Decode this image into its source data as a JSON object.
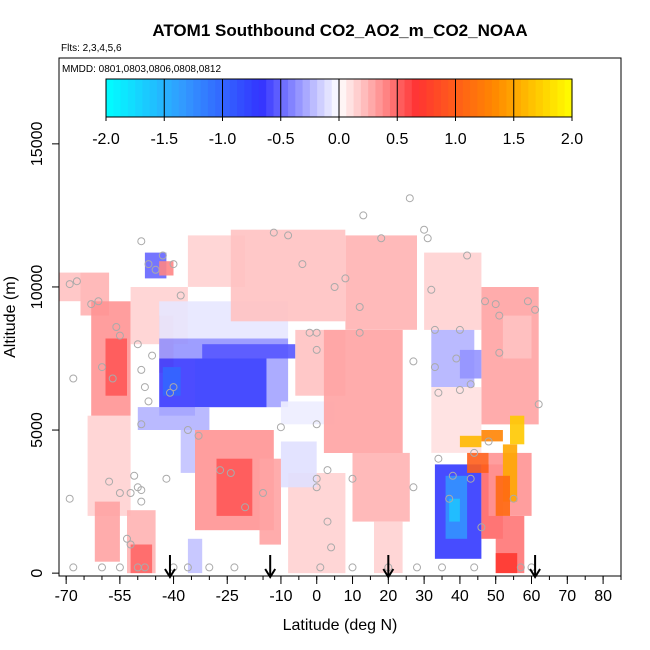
{
  "chart_data": {
    "type": "heatmap",
    "title": "ATOM1 Southbound CO2_AO2_m_CO2_NOAA",
    "subtitle_flights": "Flts: 2,3,4,5,6",
    "subtitle_dates": "MMDD: 0801,0803,0806,0808,0812",
    "xlabel": "Latitude (deg N)",
    "ylabel": "Altitude (m)",
    "xlim": [
      -72,
      85
    ],
    "ylim": [
      -100,
      18000
    ],
    "x_ticks": [
      -70,
      -55,
      -40,
      -25,
      -10,
      0,
      10,
      20,
      30,
      40,
      50,
      60,
      70,
      80
    ],
    "x_tick_labels": [
      "-70",
      "-55",
      "-40",
      "-25",
      "-10",
      "0",
      "10",
      "20",
      "30",
      "40",
      "50",
      "60",
      "70",
      "80"
    ],
    "y_ticks": [
      0,
      5000,
      10000,
      15000
    ],
    "y_tick_labels": [
      "0",
      "5000",
      "10000",
      "15000"
    ],
    "colorbar": {
      "min": -2.0,
      "max": 2.0,
      "ticks": [
        -2.0,
        -1.5,
        -1.0,
        -0.5,
        0.0,
        0.5,
        1.0,
        1.5,
        2.0
      ],
      "tick_labels": [
        "-2.0",
        "-1.5",
        "-1.0",
        "-0.5",
        "0.0",
        "0.5",
        "1.0",
        "1.5",
        "2.0"
      ],
      "colors": [
        "#00ffff",
        "#3399ff",
        "#3333ff",
        "#ffffff",
        "#ff3333",
        "#ff8800",
        "#ffff00"
      ]
    },
    "arrows_latitude": [
      -41,
      -13,
      20,
      61
    ],
    "patches": [
      {
        "lat": [
          -72,
          -66
        ],
        "alt": [
          9500,
          10500
        ],
        "value": 0.2
      },
      {
        "lat": [
          -66,
          -58
        ],
        "alt": [
          9000,
          10500
        ],
        "value": 0.25
      },
      {
        "lat": [
          -63,
          -52
        ],
        "alt": [
          5500,
          9500
        ],
        "value": 0.35
      },
      {
        "lat": [
          -59,
          -53
        ],
        "alt": [
          6200,
          8200
        ],
        "value": 0.55
      },
      {
        "lat": [
          -64,
          -52
        ],
        "alt": [
          2000,
          5500
        ],
        "value": 0.15
      },
      {
        "lat": [
          -62,
          -55
        ],
        "alt": [
          400,
          2500
        ],
        "value": 0.3
      },
      {
        "lat": [
          -53,
          -45
        ],
        "alt": [
          0,
          2200
        ],
        "value": 0.25
      },
      {
        "lat": [
          -52,
          -46
        ],
        "alt": [
          0,
          1000
        ],
        "value": 0.5
      },
      {
        "lat": [
          -48,
          -42
        ],
        "alt": [
          10300,
          11200
        ],
        "value": -0.5
      },
      {
        "lat": [
          -44,
          -40
        ],
        "alt": [
          10400,
          10900
        ],
        "value": 0.4
      },
      {
        "lat": [
          -52,
          -36
        ],
        "alt": [
          8000,
          10000
        ],
        "value": 0.15
      },
      {
        "lat": [
          -44,
          -40
        ],
        "alt": [
          7000,
          9000
        ],
        "value": 0.25
      },
      {
        "lat": [
          -44,
          -8
        ],
        "alt": [
          8200,
          9500
        ],
        "value": -0.08
      },
      {
        "lat": [
          -44,
          -8
        ],
        "alt": [
          7500,
          8200
        ],
        "value": -0.35
      },
      {
        "lat": [
          -32,
          -6
        ],
        "alt": [
          7500,
          8000
        ],
        "value": -0.55
      },
      {
        "lat": [
          -44,
          -34
        ],
        "alt": [
          5500,
          7500
        ],
        "value": -0.65
      },
      {
        "lat": [
          -43,
          -38
        ],
        "alt": [
          6200,
          7200
        ],
        "value": -1.0
      },
      {
        "lat": [
          -34,
          -14
        ],
        "alt": [
          5800,
          7500
        ],
        "value": -0.7
      },
      {
        "lat": [
          -14,
          -8
        ],
        "alt": [
          5800,
          7500
        ],
        "value": -0.3
      },
      {
        "lat": [
          -50,
          -30
        ],
        "alt": [
          5000,
          5800
        ],
        "value": -0.25
      },
      {
        "lat": [
          -38,
          -34
        ],
        "alt": [
          3500,
          5000
        ],
        "value": -0.2
      },
      {
        "lat": [
          -10,
          5
        ],
        "alt": [
          5200,
          6000
        ],
        "value": -0.06
      },
      {
        "lat": [
          -36,
          -20
        ],
        "alt": [
          10000,
          11800
        ],
        "value": 0.15
      },
      {
        "lat": [
          -24,
          8
        ],
        "alt": [
          8800,
          12000
        ],
        "value": 0.2
      },
      {
        "lat": [
          -6,
          8
        ],
        "alt": [
          6200,
          8500
        ],
        "value": 0.2
      },
      {
        "lat": [
          8,
          28
        ],
        "alt": [
          8500,
          11800
        ],
        "value": 0.25
      },
      {
        "lat": [
          2,
          24
        ],
        "alt": [
          4200,
          8500
        ],
        "value": 0.3
      },
      {
        "lat": [
          10,
          26
        ],
        "alt": [
          1800,
          4200
        ],
        "value": 0.25
      },
      {
        "lat": [
          16,
          24
        ],
        "alt": [
          0,
          1800
        ],
        "value": 0.15
      },
      {
        "lat": [
          -34,
          -12
        ],
        "alt": [
          1500,
          5000
        ],
        "value": 0.35
      },
      {
        "lat": [
          -28,
          -18
        ],
        "alt": [
          2000,
          4000
        ],
        "value": 0.55
      },
      {
        "lat": [
          -16,
          -10
        ],
        "alt": [
          1000,
          4000
        ],
        "value": 0.3
      },
      {
        "lat": [
          -36,
          -32
        ],
        "alt": [
          0,
          1200
        ],
        "value": -0.2
      },
      {
        "lat": [
          -8,
          8
        ],
        "alt": [
          0,
          3500
        ],
        "value": 0.15
      },
      {
        "lat": [
          -10,
          0
        ],
        "alt": [
          3000,
          4600
        ],
        "value": -0.1
      },
      {
        "lat": [
          30,
          46
        ],
        "alt": [
          8500,
          11200
        ],
        "value": 0.15
      },
      {
        "lat": [
          46,
          62
        ],
        "alt": [
          5200,
          10000
        ],
        "value": 0.3
      },
      {
        "lat": [
          52,
          60
        ],
        "alt": [
          7500,
          9000
        ],
        "value": 0.2
      },
      {
        "lat": [
          32,
          44
        ],
        "alt": [
          6500,
          8500
        ],
        "value": -0.25
      },
      {
        "lat": [
          32,
          46
        ],
        "alt": [
          4200,
          6500
        ],
        "value": 0.1
      },
      {
        "lat": [
          40,
          46
        ],
        "alt": [
          6800,
          7800
        ],
        "value": -0.35
      },
      {
        "lat": [
          33,
          46
        ],
        "alt": [
          500,
          3800
        ],
        "value": -0.7
      },
      {
        "lat": [
          36,
          42
        ],
        "alt": [
          1200,
          3400
        ],
        "value": -1.3
      },
      {
        "lat": [
          37,
          40
        ],
        "alt": [
          1800,
          2600
        ],
        "value": -1.6
      },
      {
        "lat": [
          46,
          52
        ],
        "alt": [
          1200,
          3800
        ],
        "value": 0.5
      },
      {
        "lat": [
          50,
          58
        ],
        "alt": [
          0,
          2000
        ],
        "value": 0.45
      },
      {
        "lat": [
          50,
          56
        ],
        "alt": [
          0,
          700
        ],
        "value": 0.7
      },
      {
        "lat": [
          48,
          60
        ],
        "alt": [
          2000,
          4200
        ],
        "value": 0.35
      },
      {
        "lat": [
          40,
          46
        ],
        "alt": [
          4400,
          4800
        ],
        "value": 1.6
      },
      {
        "lat": [
          46,
          52
        ],
        "alt": [
          4600,
          5000
        ],
        "value": 1.3
      },
      {
        "lat": [
          54,
          58
        ],
        "alt": [
          4500,
          5500
        ],
        "value": 1.7
      },
      {
        "lat": [
          52,
          56
        ],
        "alt": [
          2500,
          4500
        ],
        "value": 1.5
      },
      {
        "lat": [
          50,
          54
        ],
        "alt": [
          2000,
          3400
        ],
        "value": 1.1
      },
      {
        "lat": [
          42,
          48
        ],
        "alt": [
          3500,
          4200
        ],
        "value": 1.0
      }
    ],
    "points": [
      [
        -69,
        10100
      ],
      [
        -67,
        10200
      ],
      [
        -68,
        6800
      ],
      [
        -69,
        2600
      ],
      [
        -68,
        200
      ],
      [
        -63,
        9400
      ],
      [
        -61,
        9500
      ],
      [
        -56,
        8600
      ],
      [
        -55,
        8300
      ],
      [
        -60,
        7200
      ],
      [
        -57,
        6800
      ],
      [
        -58,
        3200
      ],
      [
        -55,
        2800
      ],
      [
        -52,
        2800
      ],
      [
        -50,
        3000
      ],
      [
        -51,
        3400
      ],
      [
        -49,
        2900
      ],
      [
        -49,
        2500
      ],
      [
        -49,
        5200
      ],
      [
        -53,
        1200
      ],
      [
        -52,
        1000
      ],
      [
        -55,
        200
      ],
      [
        -60,
        200
      ],
      [
        -50,
        200
      ],
      [
        -48,
        200
      ],
      [
        -50,
        8000
      ],
      [
        -49,
        7100
      ],
      [
        -48,
        6500
      ],
      [
        -47,
        6000
      ],
      [
        -46,
        7600
      ],
      [
        -49,
        11600
      ],
      [
        -47,
        10800
      ],
      [
        -45,
        10600
      ],
      [
        -43,
        11100
      ],
      [
        -40,
        10800
      ],
      [
        -38,
        9700
      ],
      [
        -40,
        6500
      ],
      [
        -41,
        6300
      ],
      [
        -36,
        5000
      ],
      [
        -33,
        4800
      ],
      [
        -42,
        3300
      ],
      [
        -40,
        200
      ],
      [
        -36,
        200
      ],
      [
        -30,
        200
      ],
      [
        -27,
        3600
      ],
      [
        -24,
        3500
      ],
      [
        -23,
        200
      ],
      [
        -20,
        2300
      ],
      [
        -15,
        2800
      ],
      [
        -12,
        11900
      ],
      [
        -10,
        5100
      ],
      [
        -8,
        11800
      ],
      [
        -4,
        10800
      ],
      [
        -2,
        8400
      ],
      [
        0,
        8400
      ],
      [
        0,
        7800
      ],
      [
        0,
        5200
      ],
      [
        0,
        3300
      ],
      [
        0,
        3000
      ],
      [
        1,
        200
      ],
      [
        3,
        3600
      ],
      [
        3,
        1800
      ],
      [
        4,
        900
      ],
      [
        5,
        10000
      ],
      [
        8,
        10300
      ],
      [
        10,
        3300
      ],
      [
        10,
        200
      ],
      [
        12,
        8400
      ],
      [
        12,
        9300
      ],
      [
        13,
        12500
      ],
      [
        18,
        11700
      ],
      [
        20,
        200
      ],
      [
        26,
        13100
      ],
      [
        27,
        7400
      ],
      [
        27,
        3000
      ],
      [
        28,
        200
      ],
      [
        30,
        12000
      ],
      [
        31,
        11700
      ],
      [
        32,
        9900
      ],
      [
        33,
        8500
      ],
      [
        33,
        7200
      ],
      [
        34,
        6300
      ],
      [
        34,
        4000
      ],
      [
        35,
        200
      ],
      [
        37,
        2600
      ],
      [
        38,
        3400
      ],
      [
        39,
        7500
      ],
      [
        40,
        8500
      ],
      [
        40,
        6400
      ],
      [
        42,
        11100
      ],
      [
        43,
        6600
      ],
      [
        43,
        3300
      ],
      [
        44,
        4200
      ],
      [
        44,
        200
      ],
      [
        46,
        1600
      ],
      [
        47,
        9500
      ],
      [
        48,
        4600
      ],
      [
        50,
        9400
      ],
      [
        51,
        9000
      ],
      [
        51,
        7700
      ],
      [
        55,
        2600
      ],
      [
        57,
        200
      ],
      [
        59,
        9500
      ],
      [
        61,
        9200
      ],
      [
        62,
        5900
      ],
      [
        60,
        200
      ]
    ]
  }
}
